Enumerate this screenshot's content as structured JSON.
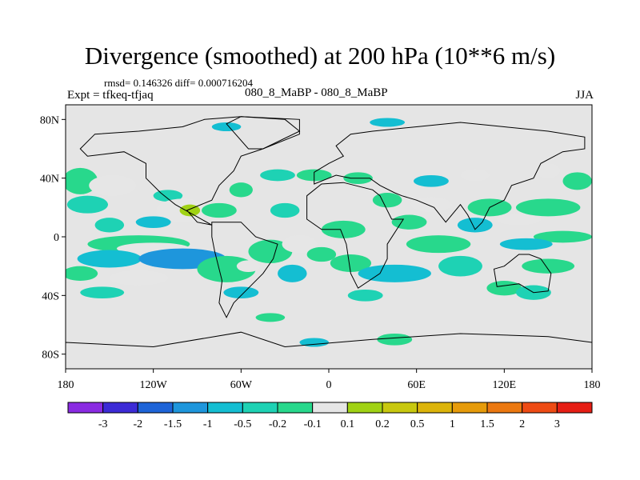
{
  "title": "Divergence (smoothed) at 200 hPa (10**6 m/s)",
  "stats_line": "rmsd= 0.146326 diff= 0.000716204",
  "experiment_label": "Expt = tfkeq-tfjaq",
  "center_label": "080_8_MaBP - 080_8_MaBP",
  "season_label": "JJA",
  "map": {
    "projection": "cylindrical equidistant",
    "lon_range": [
      -180,
      180
    ],
    "lat_range": [
      -90,
      90
    ],
    "background_color": "#e5e5e5",
    "lat_ticks": [
      {
        "value": 80,
        "label": "80N"
      },
      {
        "value": 40,
        "label": "40N"
      },
      {
        "value": 0,
        "label": "0"
      },
      {
        "value": -40,
        "label": "40S"
      },
      {
        "value": -80,
        "label": "80S"
      }
    ],
    "lon_ticks": [
      {
        "value": -180,
        "label": "180"
      },
      {
        "value": -120,
        "label": "120W"
      },
      {
        "value": -60,
        "label": "60W"
      },
      {
        "value": 0,
        "label": "0"
      },
      {
        "value": 60,
        "label": "60E"
      },
      {
        "value": 120,
        "label": "120E"
      },
      {
        "value": 180,
        "label": "180"
      }
    ],
    "blobs": [
      {
        "lon": -170,
        "lat": 38,
        "rx": 12,
        "ry": 9,
        "cls": 6
      },
      {
        "lon": -165,
        "lat": 22,
        "rx": 14,
        "ry": 6,
        "cls": 5
      },
      {
        "lon": -148,
        "lat": 35,
        "rx": 16,
        "ry": 7,
        "cls": 7
      },
      {
        "lon": -150,
        "lat": 8,
        "rx": 10,
        "ry": 5,
        "cls": 5
      },
      {
        "lon": -110,
        "lat": 28,
        "rx": 10,
        "ry": 4,
        "cls": 5
      },
      {
        "lon": -100,
        "lat": 18,
        "rx": 18,
        "ry": 8,
        "cls": 7
      },
      {
        "lon": -95,
        "lat": 18,
        "rx": 7,
        "ry": 4,
        "cls": 8
      },
      {
        "lon": -120,
        "lat": 10,
        "rx": 12,
        "ry": 4,
        "cls": 4
      },
      {
        "lon": -60,
        "lat": 32,
        "rx": 8,
        "ry": 5,
        "cls": 6
      },
      {
        "lon": -75,
        "lat": 18,
        "rx": 12,
        "ry": 5,
        "cls": 6
      },
      {
        "lon": -130,
        "lat": -5,
        "rx": 35,
        "ry": 6,
        "cls": 6
      },
      {
        "lon": -120,
        "lat": -8,
        "rx": 25,
        "ry": 4,
        "cls": 7
      },
      {
        "lon": -150,
        "lat": -15,
        "rx": 22,
        "ry": 6,
        "cls": 4
      },
      {
        "lon": -100,
        "lat": -15,
        "rx": 30,
        "ry": 7,
        "cls": 3
      },
      {
        "lon": -170,
        "lat": -25,
        "rx": 12,
        "ry": 5,
        "cls": 6
      },
      {
        "lon": -130,
        "lat": -28,
        "rx": 20,
        "ry": 5,
        "cls": 7
      },
      {
        "lon": -70,
        "lat": -22,
        "rx": 20,
        "ry": 9,
        "cls": 6
      },
      {
        "lon": -55,
        "lat": -20,
        "rx": 8,
        "ry": 4,
        "cls": 7
      },
      {
        "lon": -155,
        "lat": -38,
        "rx": 15,
        "ry": 4,
        "cls": 5
      },
      {
        "lon": -60,
        "lat": -38,
        "rx": 12,
        "ry": 4,
        "cls": 4
      },
      {
        "lon": -40,
        "lat": -10,
        "rx": 15,
        "ry": 8,
        "cls": 6
      },
      {
        "lon": -25,
        "lat": -25,
        "rx": 10,
        "ry": 6,
        "cls": 4
      },
      {
        "lon": -10,
        "lat": 42,
        "rx": 12,
        "ry": 4,
        "cls": 6
      },
      {
        "lon": -35,
        "lat": 42,
        "rx": 12,
        "ry": 4,
        "cls": 5
      },
      {
        "lon": -30,
        "lat": 18,
        "rx": 10,
        "ry": 5,
        "cls": 5
      },
      {
        "lon": -20,
        "lat": -5,
        "rx": 12,
        "ry": 6,
        "cls": 7
      },
      {
        "lon": -5,
        "lat": -12,
        "rx": 10,
        "ry": 5,
        "cls": 6
      },
      {
        "lon": 15,
        "lat": -18,
        "rx": 14,
        "ry": 6,
        "cls": 6
      },
      {
        "lon": 45,
        "lat": -25,
        "rx": 25,
        "ry": 6,
        "cls": 4
      },
      {
        "lon": 25,
        "lat": -40,
        "rx": 12,
        "ry": 4,
        "cls": 5
      },
      {
        "lon": 10,
        "lat": 5,
        "rx": 15,
        "ry": 6,
        "cls": 6
      },
      {
        "lon": 40,
        "lat": 25,
        "rx": 10,
        "ry": 5,
        "cls": 6
      },
      {
        "lon": 70,
        "lat": 22,
        "rx": 14,
        "ry": 5,
        "cls": 7
      },
      {
        "lon": 55,
        "lat": 10,
        "rx": 12,
        "ry": 5,
        "cls": 6
      },
      {
        "lon": 75,
        "lat": -5,
        "rx": 22,
        "ry": 6,
        "cls": 6
      },
      {
        "lon": 90,
        "lat": -20,
        "rx": 15,
        "ry": 7,
        "cls": 5
      },
      {
        "lon": 110,
        "lat": 20,
        "rx": 15,
        "ry": 6,
        "cls": 6
      },
      {
        "lon": 130,
        "lat": 12,
        "rx": 15,
        "ry": 4,
        "cls": 7
      },
      {
        "lon": 150,
        "lat": 20,
        "rx": 22,
        "ry": 6,
        "cls": 6
      },
      {
        "lon": 160,
        "lat": 0,
        "rx": 20,
        "ry": 4,
        "cls": 6
      },
      {
        "lon": 135,
        "lat": -5,
        "rx": 18,
        "ry": 4,
        "cls": 4
      },
      {
        "lon": 100,
        "lat": 8,
        "rx": 12,
        "ry": 5,
        "cls": 4
      },
      {
        "lon": 150,
        "lat": -20,
        "rx": 18,
        "ry": 5,
        "cls": 6
      },
      {
        "lon": 120,
        "lat": -35,
        "rx": 12,
        "ry": 5,
        "cls": 6
      },
      {
        "lon": 140,
        "lat": -38,
        "rx": 12,
        "ry": 5,
        "cls": 5
      },
      {
        "lon": 170,
        "lat": 38,
        "rx": 10,
        "ry": 6,
        "cls": 6
      },
      {
        "lon": 150,
        "lat": 45,
        "rx": 8,
        "ry": 5,
        "cls": 7
      },
      {
        "lon": 100,
        "lat": 42,
        "rx": 10,
        "ry": 4,
        "cls": 7
      },
      {
        "lon": 70,
        "lat": 38,
        "rx": 12,
        "ry": 4,
        "cls": 4
      },
      {
        "lon": 20,
        "lat": 40,
        "rx": 10,
        "ry": 4,
        "cls": 6
      },
      {
        "lon": 40,
        "lat": 78,
        "rx": 12,
        "ry": 3,
        "cls": 4
      },
      {
        "lon": -70,
        "lat": 75,
        "rx": 10,
        "ry": 3,
        "cls": 4
      },
      {
        "lon": -40,
        "lat": -55,
        "rx": 10,
        "ry": 3,
        "cls": 6
      },
      {
        "lon": 45,
        "lat": -70,
        "rx": 12,
        "ry": 4,
        "cls": 6
      },
      {
        "lon": -10,
        "lat": -72,
        "rx": 10,
        "ry": 3,
        "cls": 4
      }
    ],
    "land": [
      [
        [
          -170,
          60
        ],
        [
          -160,
          70
        ],
        [
          -130,
          72
        ],
        [
          -100,
          75
        ],
        [
          -85,
          80
        ],
        [
          -60,
          82
        ],
        [
          -30,
          80
        ],
        [
          -20,
          72
        ],
        [
          -45,
          60
        ],
        [
          -60,
          55
        ],
        [
          -65,
          45
        ],
        [
          -75,
          35
        ],
        [
          -80,
          25
        ],
        [
          -97,
          18
        ],
        [
          -90,
          10
        ],
        [
          -80,
          8
        ],
        [
          -105,
          22
        ],
        [
          -115,
          30
        ],
        [
          -125,
          40
        ],
        [
          -125,
          50
        ],
        [
          -140,
          58
        ],
        [
          -165,
          55
        ]
      ],
      [
        [
          -80,
          10
        ],
        [
          -60,
          10
        ],
        [
          -50,
          0
        ],
        [
          -35,
          -5
        ],
        [
          -38,
          -15
        ],
        [
          -45,
          -25
        ],
        [
          -55,
          -35
        ],
        [
          -65,
          -45
        ],
        [
          -70,
          -55
        ],
        [
          -75,
          -45
        ],
        [
          -73,
          -30
        ],
        [
          -78,
          -10
        ],
        [
          -80,
          0
        ]
      ],
      [
        [
          -15,
          28
        ],
        [
          -5,
          36
        ],
        [
          10,
          37
        ],
        [
          30,
          32
        ],
        [
          35,
          28
        ],
        [
          43,
          12
        ],
        [
          51,
          12
        ],
        [
          40,
          -5
        ],
        [
          40,
          -15
        ],
        [
          35,
          -25
        ],
        [
          20,
          -35
        ],
        [
          15,
          -25
        ],
        [
          12,
          -5
        ],
        [
          8,
          5
        ],
        [
          -5,
          5
        ],
        [
          -15,
          12
        ]
      ],
      [
        [
          -10,
          36
        ],
        [
          -10,
          44
        ],
        [
          0,
          50
        ],
        [
          10,
          55
        ],
        [
          5,
          62
        ],
        [
          15,
          70
        ],
        [
          30,
          72
        ],
        [
          60,
          75
        ],
        [
          90,
          78
        ],
        [
          120,
          75
        ],
        [
          150,
          72
        ],
        [
          175,
          68
        ],
        [
          175,
          60
        ],
        [
          160,
          58
        ],
        [
          145,
          50
        ],
        [
          140,
          40
        ],
        [
          125,
          35
        ],
        [
          120,
          25
        ],
        [
          110,
          20
        ],
        [
          105,
          10
        ],
        [
          100,
          5
        ],
        [
          95,
          15
        ],
        [
          90,
          22
        ],
        [
          80,
          10
        ],
        [
          72,
          20
        ],
        [
          60,
          25
        ],
        [
          50,
          28
        ],
        [
          45,
          30
        ],
        [
          35,
          35
        ],
        [
          28,
          40
        ],
        [
          15,
          40
        ],
        [
          5,
          42
        ]
      ],
      [
        [
          113,
          -22
        ],
        [
          120,
          -20
        ],
        [
          130,
          -12
        ],
        [
          137,
          -12
        ],
        [
          145,
          -15
        ],
        [
          152,
          -25
        ],
        [
          150,
          -37
        ],
        [
          140,
          -38
        ],
        [
          130,
          -32
        ],
        [
          115,
          -34
        ]
      ],
      [
        [
          -180,
          -72
        ],
        [
          -120,
          -75
        ],
        [
          -60,
          -65
        ],
        [
          -30,
          -75
        ],
        [
          30,
          -70
        ],
        [
          90,
          -66
        ],
        [
          150,
          -68
        ],
        [
          180,
          -72
        ],
        [
          180,
          -90
        ],
        [
          -180,
          -90
        ]
      ],
      [
        [
          -55,
          60
        ],
        [
          -45,
          60
        ],
        [
          -20,
          70
        ],
        [
          -20,
          80
        ],
        [
          -60,
          82
        ],
        [
          -70,
          77
        ]
      ]
    ]
  },
  "colorbar": {
    "colors": [
      "#8a2be2",
      "#3c2bd6",
      "#1e64d8",
      "#1e96dc",
      "#14bed2",
      "#1ed2b4",
      "#28d88c",
      "#e6e6e6",
      "#a0d214",
      "#c8c80f",
      "#dcb40a",
      "#e69b0a",
      "#eb7810",
      "#ee4b14",
      "#e61e14"
    ],
    "labels": [
      "-3",
      "-2",
      "-1.5",
      "-1",
      "-0.5",
      "-0.2",
      "-0.1",
      "0.1",
      "0.2",
      "0.5",
      "1",
      "1.5",
      "2",
      "3"
    ]
  }
}
